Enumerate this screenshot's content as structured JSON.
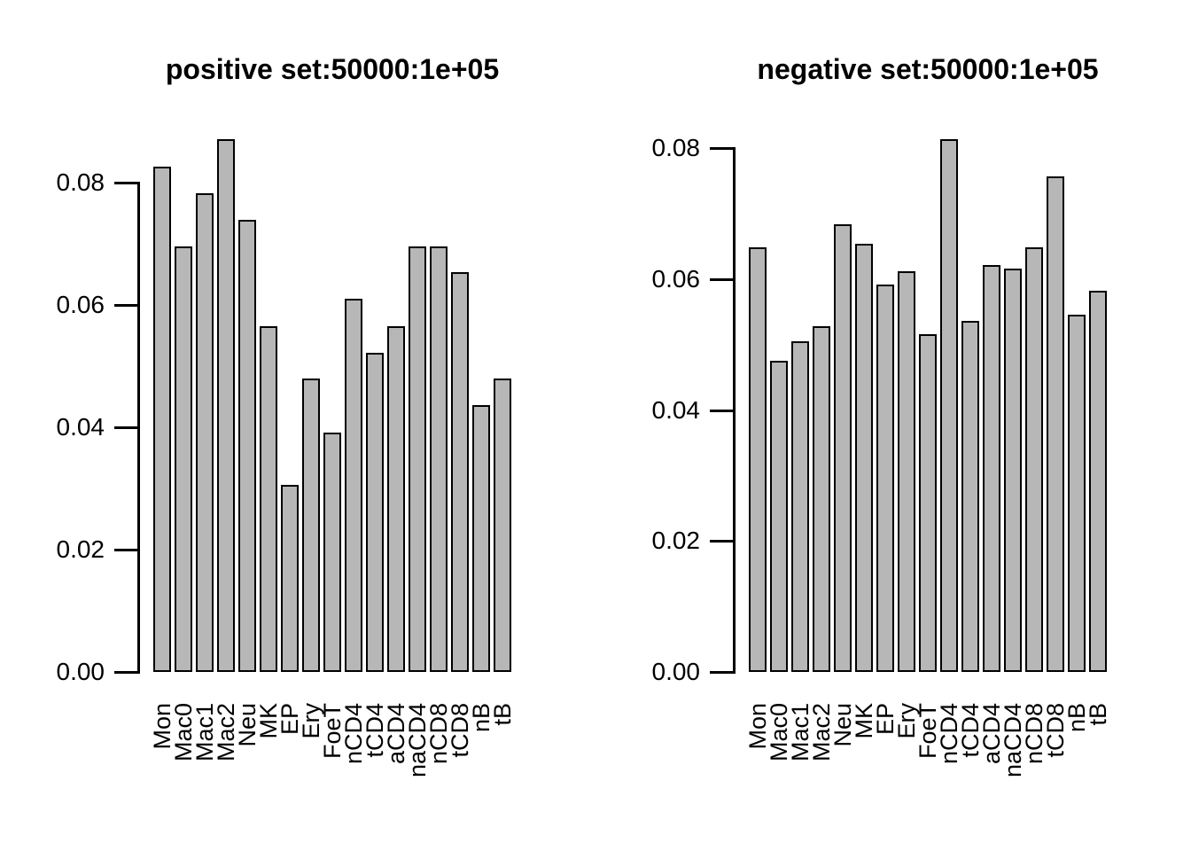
{
  "page": {
    "background": "#ffffff",
    "text_color": "#000000"
  },
  "chart_data": [
    {
      "type": "bar",
      "title": "positive set:50000:1e+05",
      "categories": [
        "Mon",
        "Mac0",
        "Mac1",
        "Mac2",
        "Neu",
        "MK",
        "EP",
        "Ery",
        "FoeT",
        "nCD4",
        "tCD4",
        "aCD4",
        "naCD4",
        "nCD8",
        "tCD8",
        "nB",
        "tB"
      ],
      "values": [
        0.0826,
        0.0696,
        0.0783,
        0.0871,
        0.0739,
        0.0565,
        0.0306,
        0.048,
        0.0391,
        0.061,
        0.0522,
        0.0565,
        0.0696,
        0.0696,
        0.0654,
        0.0436,
        0.048
      ],
      "xlabel": "",
      "ylabel": "",
      "ytick_values": [
        0,
        0.02,
        0.04,
        0.06,
        0.08
      ],
      "ytick_labels": [
        "0.00",
        "0.02",
        "0.04",
        "0.06",
        "0.08"
      ],
      "ylim": [
        0,
        0.0871
      ],
      "grid": false,
      "legend": null,
      "bar_fill": "#b7b7b7",
      "bar_border": "#000000"
    },
    {
      "type": "bar",
      "title": "negative set:50000:1e+05",
      "categories": [
        "Mon",
        "Mac0",
        "Mac1",
        "Mac2",
        "Neu",
        "MK",
        "EP",
        "Ery",
        "FoeT",
        "nCD4",
        "tCD4",
        "aCD4",
        "naCD4",
        "nCD8",
        "tCD8",
        "nB",
        "tB"
      ],
      "values": [
        0.0649,
        0.0475,
        0.0505,
        0.0528,
        0.0684,
        0.0654,
        0.0592,
        0.0612,
        0.0516,
        0.0814,
        0.0536,
        0.0622,
        0.0616,
        0.0649,
        0.0757,
        0.0546,
        0.0582
      ],
      "xlabel": "",
      "ylabel": "",
      "ytick_values": [
        0,
        0.02,
        0.04,
        0.06,
        0.08
      ],
      "ytick_labels": [
        "0.00",
        "0.02",
        "0.04",
        "0.06",
        "0.08"
      ],
      "ylim": [
        0,
        0.0814
      ],
      "grid": false,
      "legend": null,
      "bar_fill": "#b7b7b7",
      "bar_border": "#000000"
    }
  ]
}
